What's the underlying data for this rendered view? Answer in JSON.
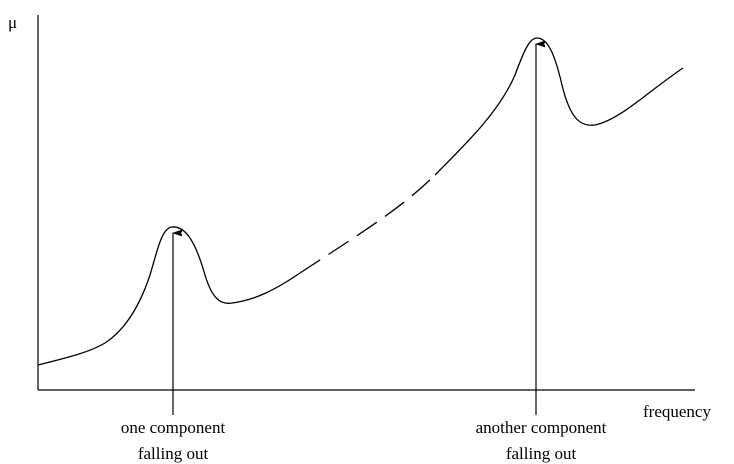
{
  "axes": {
    "y_label": "μ",
    "x_label": "frequency"
  },
  "annotations": [
    {
      "lines": [
        "one component",
        "falling out"
      ]
    },
    {
      "lines": [
        "another component",
        "falling out"
      ]
    }
  ]
}
